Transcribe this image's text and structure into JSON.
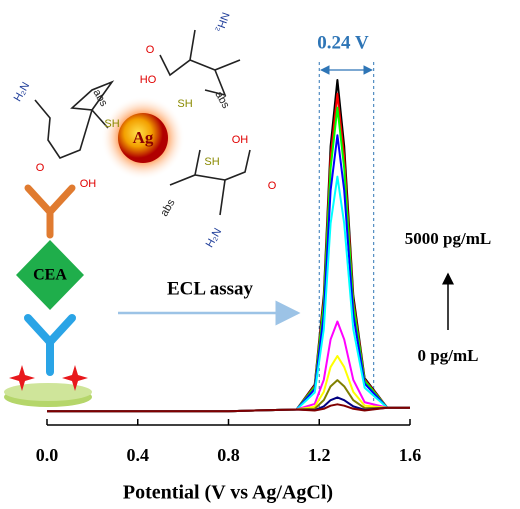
{
  "chart_data": {
    "type": "line",
    "x_label": "Potential (V vs Ag/AgCl)",
    "xlim": [
      0,
      1.6
    ],
    "xticks": [
      {
        "value": 0,
        "label": "0.0"
      },
      0.4,
      0.8,
      1.2,
      1.6
    ],
    "ylim": [
      0,
      100
    ],
    "x": [
      0,
      0.4,
      0.8,
      1.1,
      1.18,
      1.22,
      1.25,
      1.28,
      1.31,
      1.35,
      1.4,
      1.5,
      1.6
    ],
    "series": [
      {
        "color": "#000000",
        "values": [
          4,
          4,
          4,
          4.5,
          11.7,
          37.6,
          80.8,
          100,
          80.8,
          37.6,
          13.6,
          5,
          5
        ]
      },
      {
        "color": "#ff0000",
        "values": [
          4,
          4,
          4,
          4.5,
          11.4,
          36.2,
          77.6,
          96,
          77.6,
          36.2,
          13.2,
          5,
          5
        ]
      },
      {
        "color": "#00ff00",
        "values": [
          4,
          4,
          4,
          4.5,
          11,
          34.8,
          74.4,
          92,
          74.4,
          34.8,
          12.8,
          5,
          5
        ]
      },
      {
        "color": "#0000ff",
        "values": [
          4,
          4,
          4,
          4.5,
          10.4,
          32,
          68,
          84,
          68,
          32,
          12,
          5,
          5
        ]
      },
      {
        "color": "#00ffff",
        "values": [
          4,
          4,
          4,
          4.5,
          9.4,
          27.8,
          58.4,
          72,
          58.4,
          27.8,
          10.8,
          5,
          5
        ]
      },
      {
        "color": "#ff00ff",
        "values": [
          4,
          4,
          4,
          4.5,
          6.1,
          13.1,
          24.8,
          30,
          24.8,
          13.1,
          6.6,
          5,
          5
        ]
      },
      {
        "color": "#ffff00",
        "values": [
          4,
          4,
          4,
          4.5,
          5.3,
          9.6,
          16.8,
          20,
          16.8,
          9.6,
          5.6,
          5,
          5
        ]
      },
      {
        "color": "#808000",
        "values": [
          4,
          4,
          4,
          4.5,
          4.7,
          7.2,
          11.2,
          13,
          11.2,
          7.2,
          4.9,
          5,
          5
        ]
      },
      {
        "color": "#000080",
        "values": [
          4,
          4,
          4,
          4.5,
          4.3,
          5.4,
          7.2,
          8,
          7.2,
          5.4,
          4.4,
          5,
          5
        ]
      },
      {
        "color": "#800000",
        "values": [
          4,
          4,
          4,
          4.5,
          4.2,
          4.7,
          5.6,
          6,
          5.6,
          4.7,
          4.2,
          5,
          5
        ]
      }
    ],
    "markers": [
      1.2,
      1.44
    ],
    "annotations": {
      "width": "0.24 V",
      "high": "5000 pg/mL",
      "low": "0 pg/mL",
      "assay": "ECL assay",
      "antigen": "CEA",
      "particle": "Ag"
    },
    "molecules": [
      {
        "labels": [
          "H₂N",
          "abs",
          "SH",
          "O",
          "OH"
        ]
      },
      {
        "labels": [
          "O",
          "HO",
          "NH₂",
          "SH",
          "abs"
        ]
      },
      {
        "labels": [
          "OH",
          "O",
          "abs",
          "SH",
          "H₂N"
        ]
      }
    ]
  }
}
